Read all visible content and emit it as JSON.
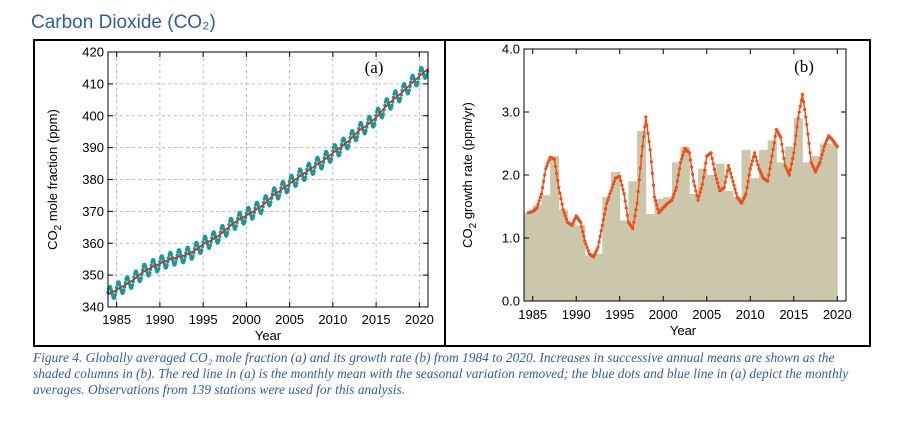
{
  "title": "Carbon Dioxide (CO₂)",
  "caption": "Figure 4. Globally averaged CO₂ mole fraction (a) and its growth rate (b) from 1984 to 2020. Increases in successive annual means are shown as the shaded columns in (b). The red line in (a) is the monthly mean with the seasonal variation removed; the blue dots and blue line in (a) depict the monthly averages. Observations from 139 stations were used for this analysis.",
  "colors": {
    "title": "#2e5f9a",
    "trend": "#d62a1e",
    "monthly": "#159a9a",
    "growth": "#f04d18",
    "columns": "#cbc7aa"
  },
  "chart_data": [
    {
      "type": "line",
      "panel_label": "(a)",
      "xlabel": "Year",
      "ylabel": "CO2 mole fraction (ppm)",
      "xlim": [
        1984,
        2021
      ],
      "ylim": [
        340,
        420
      ],
      "xticks": [
        1985,
        1990,
        1995,
        2000,
        2005,
        2010,
        2015,
        2020
      ],
      "yticks": [
        340,
        350,
        360,
        370,
        380,
        390,
        400,
        410,
        420
      ],
      "grid": true,
      "series": [
        {
          "style": "red line (deseasonalized monthly mean)",
          "x": [
            1984,
            1985,
            1986,
            1987,
            1988,
            1989,
            1990,
            1991,
            1992,
            1993,
            1994,
            1995,
            1996,
            1997,
            1998,
            1999,
            2000,
            2001,
            2002,
            2003,
            2004,
            2005,
            2006,
            2007,
            2008,
            2009,
            2010,
            2011,
            2012,
            2013,
            2014,
            2015,
            2016,
            2017,
            2018,
            2019,
            2020,
            2021
          ],
          "values": [
            343.9,
            345.4,
            346.9,
            348.6,
            350.9,
            352.4,
            353.6,
            354.8,
            355.6,
            356.3,
            357.6,
            359.7,
            361.0,
            362.8,
            365.2,
            367.2,
            368.7,
            370.3,
            372.1,
            374.8,
            376.7,
            378.7,
            380.7,
            382.5,
            384.4,
            386.1,
            388.3,
            390.3,
            392.5,
            395.3,
            397.1,
            399.4,
            402.6,
            405.1,
            407.3,
            409.9,
            412.4,
            414.7
          ]
        },
        {
          "style": "blue dots and line (monthly averages)",
          "seasonal_amplitude_ppm": 2.2
        }
      ]
    },
    {
      "type": "bar",
      "panel_label": "(b)",
      "xlabel": "Year",
      "ylabel": "CO2 growth rate (ppm/yr)",
      "xlim": [
        1984,
        2021
      ],
      "ylim": [
        0.0,
        4.0
      ],
      "xticks": [
        1985,
        1990,
        1995,
        2000,
        2005,
        2010,
        2015,
        2020
      ],
      "yticks": [
        0.0,
        1.0,
        2.0,
        3.0,
        4.0
      ],
      "grid": false,
      "columns": {
        "categories": [
          1985,
          1986,
          1987,
          1988,
          1989,
          1990,
          1991,
          1992,
          1993,
          1994,
          1995,
          1996,
          1997,
          1998,
          1999,
          2000,
          2001,
          2002,
          2003,
          2004,
          2005,
          2006,
          2007,
          2008,
          2009,
          2010,
          2011,
          2012,
          2013,
          2014,
          2015,
          2016,
          2017,
          2018,
          2019,
          2020
        ],
        "values": [
          1.4,
          1.52,
          1.68,
          2.3,
          1.45,
          1.22,
          1.2,
          0.72,
          0.75,
          1.65,
          2.05,
          1.28,
          1.9,
          2.7,
          1.38,
          1.62,
          1.65,
          2.2,
          2.45,
          1.7,
          2.1,
          2.0,
          2.18,
          1.75,
          1.65,
          2.4,
          1.95,
          2.4,
          2.55,
          2.2,
          2.45,
          2.9,
          2.2,
          2.3,
          2.5,
          2.5
        ]
      },
      "growth_line": {
        "x": [
          1984.5,
          1985.0,
          1985.5,
          1986.0,
          1986.5,
          1987.0,
          1987.5,
          1988.0,
          1988.5,
          1989.0,
          1989.5,
          1990.0,
          1990.5,
          1991.0,
          1991.5,
          1992.0,
          1992.5,
          1993.0,
          1993.5,
          1994.0,
          1994.5,
          1995.0,
          1995.5,
          1996.0,
          1996.5,
          1997.0,
          1997.5,
          1998.0,
          1998.5,
          1999.0,
          1999.5,
          2000.0,
          2000.5,
          2001.0,
          2001.5,
          2002.0,
          2002.5,
          2003.0,
          2003.5,
          2004.0,
          2004.5,
          2005.0,
          2005.5,
          2006.0,
          2006.5,
          2007.0,
          2007.5,
          2008.0,
          2008.5,
          2009.0,
          2009.5,
          2010.0,
          2010.5,
          2011.0,
          2011.5,
          2012.0,
          2012.5,
          2013.0,
          2013.5,
          2014.0,
          2014.5,
          2015.0,
          2015.5,
          2016.0,
          2016.5,
          2017.0,
          2017.5,
          2018.0,
          2018.5,
          2019.0,
          2019.5,
          2020.0
        ],
        "values": [
          1.4,
          1.42,
          1.48,
          1.7,
          2.1,
          2.28,
          2.25,
          1.8,
          1.45,
          1.25,
          1.2,
          1.35,
          1.25,
          0.95,
          0.75,
          0.7,
          0.85,
          1.2,
          1.55,
          1.75,
          1.95,
          1.98,
          1.7,
          1.25,
          1.15,
          1.55,
          2.3,
          2.92,
          2.4,
          1.65,
          1.4,
          1.48,
          1.55,
          1.6,
          1.8,
          2.2,
          2.42,
          2.35,
          1.9,
          1.6,
          1.85,
          2.3,
          2.35,
          2.0,
          1.75,
          1.8,
          2.15,
          1.9,
          1.65,
          1.55,
          1.7,
          2.1,
          2.35,
          2.1,
          1.95,
          1.9,
          2.3,
          2.72,
          2.6,
          2.15,
          2.0,
          2.35,
          2.9,
          3.28,
          2.8,
          2.2,
          2.05,
          2.2,
          2.45,
          2.62,
          2.55,
          2.45
        ]
      }
    }
  ]
}
